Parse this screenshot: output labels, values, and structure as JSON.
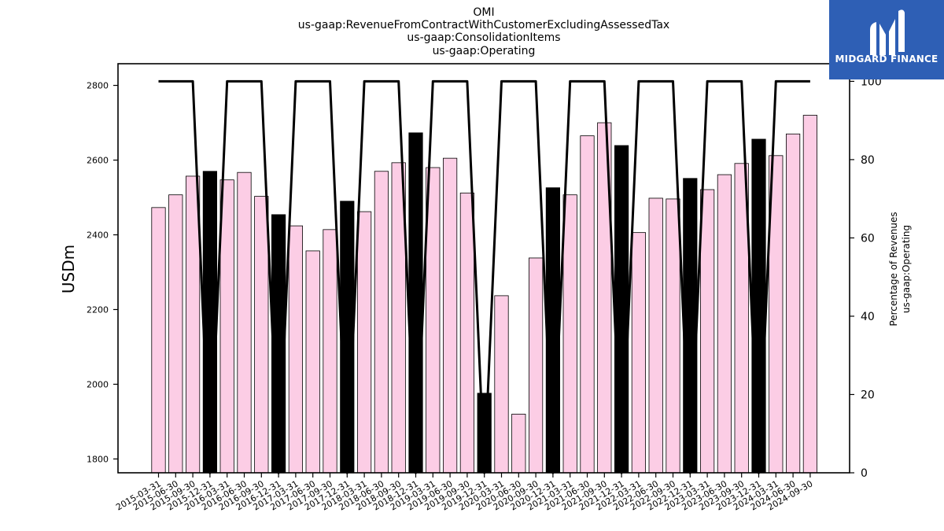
{
  "chart_data": {
    "type": "bar",
    "title_lines": [
      "OMI",
      "us-gaap:RevenueFromContractWithCustomerExcludingAssessedTax",
      "us-gaap:ConsolidationItems",
      "us-gaap:Operating"
    ],
    "ylabel": "USDm",
    "ylabel_right_lines": [
      "Percentage of Revenues",
      "us-gaap:Operating"
    ],
    "ylim": [
      1763,
      2858
    ],
    "ylim_right": [
      0,
      104.5
    ],
    "yticks": [
      1800,
      2000,
      2200,
      2400,
      2600,
      2800
    ],
    "yticks_right": [
      0,
      20,
      40,
      60,
      80,
      100
    ],
    "categories": [
      "2015-03-31",
      "2015-06-30",
      "2015-09-30",
      "2015-12-31",
      "2016-03-31",
      "2016-06-30",
      "2016-09-30",
      "2016-12-31",
      "2017-03-31",
      "2017-06-30",
      "2017-09-30",
      "2017-12-31",
      "2018-03-31",
      "2018-06-30",
      "2018-09-30",
      "2018-12-31",
      "2019-03-31",
      "2019-06-30",
      "2019-09-30",
      "2019-12-31",
      "2020-03-31",
      "2020-06-30",
      "2020-09-30",
      "2020-12-31",
      "2021-03-31",
      "2021-06-30",
      "2021-09-30",
      "2021-12-31",
      "2022-03-31",
      "2022-06-30",
      "2022-09-30",
      "2022-12-31",
      "2023-03-31",
      "2023-06-30",
      "2023-09-30",
      "2023-12-31",
      "2024-03-31",
      "2024-06-30",
      "2024-09-30"
    ],
    "series": [
      {
        "values": [
          2473,
          2507,
          2557,
          2570,
          2547,
          2567,
          2503,
          2454,
          2424,
          2357,
          2414,
          2490,
          2462,
          2570,
          2593,
          2673,
          2580,
          2605,
          2512,
          1976,
          2237,
          1920,
          2338,
          2526,
          2507,
          2665,
          2700,
          2639,
          2406,
          2498,
          2496,
          2551,
          2521,
          2561,
          2591,
          2656,
          2612,
          2670,
          2720
        ],
        "bar_kind": [
          "q",
          "q",
          "q",
          "fy",
          "q",
          "q",
          "q",
          "fy",
          "q",
          "q",
          "q",
          "fy",
          "q",
          "q",
          "q",
          "fy",
          "q",
          "q",
          "q",
          "fy",
          "q",
          "q",
          "q",
          "fy",
          "q",
          "q",
          "q",
          "fy",
          "q",
          "q",
          "q",
          "fy",
          "q",
          "q",
          "q",
          "fy",
          "q",
          "q",
          "q"
        ]
      },
      {
        "axis": "right",
        "type": "line",
        "values": [
          100,
          100,
          100,
          0,
          100,
          100,
          100,
          0,
          100,
          100,
          100,
          0,
          100,
          100,
          100,
          0,
          100,
          100,
          100,
          0,
          100,
          100,
          100,
          0,
          100,
          100,
          100,
          0,
          100,
          100,
          100,
          0,
          100,
          100,
          100,
          0,
          100,
          100,
          100
        ]
      }
    ],
    "colors": {
      "quarter_bar": "#fccde5",
      "annual_bar": "#000000",
      "bar_edge": "#000000",
      "line": "#000000"
    },
    "grid": false
  },
  "logo": {
    "text": "MIDGARD FINANCE",
    "background": "#2e5fb5",
    "icon": "midgard-logo-icon"
  }
}
